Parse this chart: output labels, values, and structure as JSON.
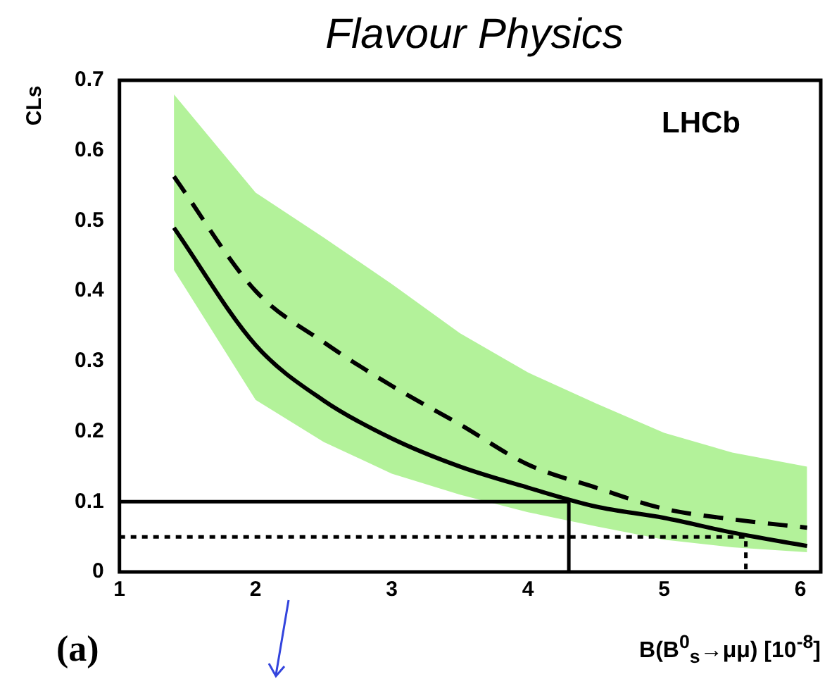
{
  "chart_data": {
    "type": "line",
    "title": "Flavour Physics",
    "xlabel": "B(B$^{0}$$_{s}$→μμ) [10$^{-8}$]",
    "ylabel": "CLs",
    "x": [
      1.4,
      2,
      2.5,
      3,
      3.5,
      4,
      4.5,
      5,
      5.5,
      6.05
    ],
    "series": [
      {
        "color": "#000000",
        "line_style": "solid",
        "values": [
          0.49,
          0.323,
          0.244,
          0.19,
          0.15,
          0.12,
          0.093,
          0.077,
          0.056,
          0.037
        ]
      },
      {
        "color": "#000000",
        "line_style": "dashed",
        "values": [
          0.563,
          0.4,
          0.327,
          0.265,
          0.21,
          0.153,
          0.12,
          0.09,
          0.075,
          0.063
        ],
        "lower": [
          0.43,
          0.245,
          0.185,
          0.14,
          0.11,
          0.085,
          0.065,
          0.046,
          0.035,
          0.028
        ],
        "upper": [
          0.68,
          0.54,
          0.476,
          0.41,
          0.34,
          0.284,
          0.24,
          0.198,
          0.17,
          0.15
        ]
      },
      {
        "color": "#000000",
        "line_style": "solid",
        "x": [
          1,
          4.3,
          4.3
        ],
        "values": [
          0.1,
          0.1,
          0
        ]
      },
      {
        "color": "#000000",
        "line_style": "dotted",
        "x": [
          1,
          5.6,
          5.6
        ],
        "values": [
          0.05,
          0.05,
          0
        ]
      }
    ],
    "xlim": [
      1,
      6.15
    ],
    "xticks": [
      1,
      2,
      3,
      4,
      5,
      6
    ],
    "ylim": [
      0,
      0.7
    ],
    "yticks": [
      0,
      0.1,
      0.2,
      0.3,
      0.4,
      0.5,
      0.6,
      0.7
    ],
    "annotations": [
      "LHCb",
      "(a)"
    ],
    "grid": false,
    "legend": false,
    "marker": "none"
  }
}
